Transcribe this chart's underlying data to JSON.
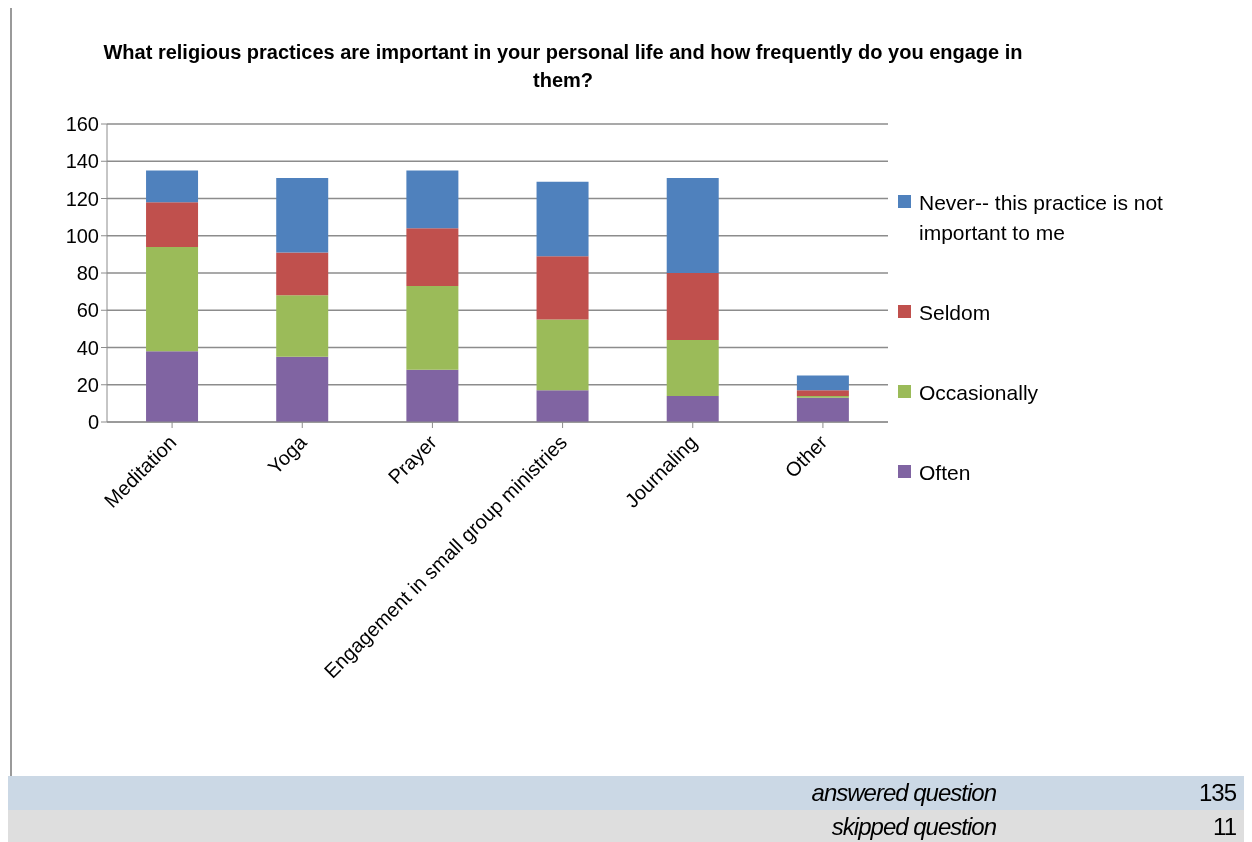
{
  "chart_data": {
    "type": "bar",
    "stacked": true,
    "title": "What religious practices are important in your personal life and how frequently do you engage in them?",
    "categories": [
      "Meditation",
      "Yoga",
      "Prayer",
      "Engagement in small group ministries",
      "Journaling",
      "Other"
    ],
    "series": [
      {
        "name": "Often",
        "color": "#8064a2",
        "values": [
          38,
          35,
          28,
          17,
          14,
          13
        ]
      },
      {
        "name": "Occasionally",
        "color": "#9bbb59",
        "values": [
          56,
          33,
          45,
          38,
          30,
          1
        ]
      },
      {
        "name": "Seldom",
        "color": "#c0504d",
        "values": [
          24,
          23,
          31,
          34,
          36,
          3
        ]
      },
      {
        "name": "Never-- this practice is not important to me",
        "color": "#4f81bd",
        "values": [
          17,
          40,
          31,
          40,
          51,
          8
        ]
      }
    ],
    "ylim": [
      0,
      160
    ],
    "yticks": [
      0,
      20,
      40,
      60,
      80,
      100,
      120,
      140,
      160
    ],
    "grid": "y",
    "legend": "right",
    "annotations": [
      "answered question",
      "135",
      "skipped question",
      "11"
    ]
  }
}
